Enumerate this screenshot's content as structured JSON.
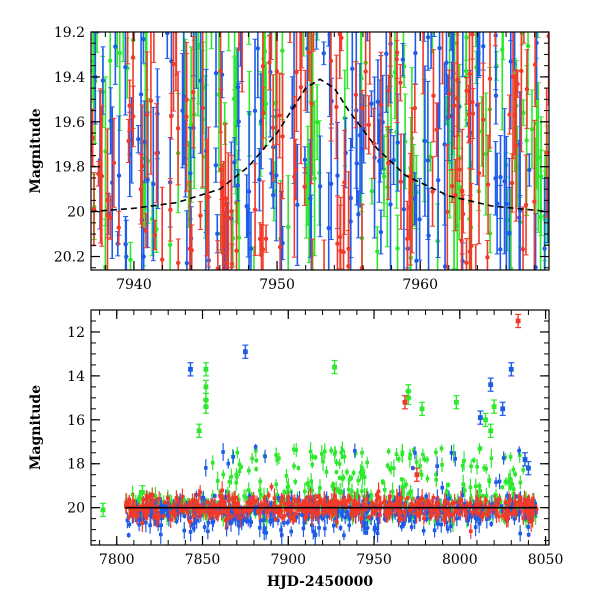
{
  "chart_data": [
    {
      "type": "scatter",
      "title": "",
      "xlabel": "",
      "ylabel": "Magnitude",
      "xlim": [
        7937,
        7969
      ],
      "ylim": [
        20.26,
        19.2
      ],
      "y_inverted": true,
      "x_ticks": [
        7940,
        7950,
        7960
      ],
      "x_tick_labels": [
        "7940",
        "7950",
        "7960"
      ],
      "y_ticks": [
        19.2,
        19.4,
        19.6,
        19.8,
        20,
        20.2
      ],
      "y_tick_labels": [
        "19.2",
        "19.4",
        "19.6",
        "19.8",
        "20",
        "20.2"
      ],
      "grid": false,
      "legend": "none",
      "series": [
        {
          "color": "#2ee82e",
          "x_range": [
            7937,
            7969
          ],
          "y_range": [
            19.0,
            20.3
          ],
          "error_bars": true
        },
        {
          "color": "#1e5be8",
          "x_range": [
            7937,
            7969
          ],
          "y_range": [
            19.0,
            20.3
          ],
          "error_bars": true
        },
        {
          "color": "#f23a2a",
          "x_range": [
            7937,
            7969
          ],
          "y_range": [
            19.0,
            20.3
          ],
          "error_bars": true
        }
      ],
      "model_curve": {
        "style": "dashed",
        "color": "#000000",
        "x": [
          7937,
          7940,
          7943,
          7946,
          7948,
          7950,
          7951,
          7952,
          7953,
          7954,
          7955,
          7957,
          7959,
          7962,
          7965,
          7969
        ],
        "y": [
          20.0,
          19.985,
          19.96,
          19.9,
          19.8,
          19.65,
          19.55,
          19.45,
          19.41,
          19.45,
          19.55,
          19.72,
          19.84,
          19.93,
          19.975,
          20.0
        ]
      }
    },
    {
      "type": "scatter",
      "title": "",
      "xlabel": "HJD-2450000",
      "ylabel": "Magnitude",
      "xlim": [
        7785,
        8052
      ],
      "ylim": [
        21.7,
        11.0
      ],
      "y_inverted": true,
      "x_ticks": [
        7800,
        7850,
        7900,
        7950,
        8000,
        8050
      ],
      "x_tick_labels": [
        "7800",
        "7850",
        "7900",
        "7950",
        "8000",
        "8050"
      ],
      "y_ticks": [
        12,
        14,
        16,
        18,
        20
      ],
      "y_tick_labels": [
        "12",
        "14",
        "16",
        "18",
        "20"
      ],
      "grid": false,
      "legend": "none",
      "series": [
        {
          "color": "#2ee82e",
          "baseline_mag": 20.0,
          "x_range": [
            7805,
            8045
          ],
          "error_bars": true,
          "outliers": [
            [
              7792,
              20.1
            ],
            [
              7815,
              19.3
            ],
            [
              7848,
              16.5
            ],
            [
              7852,
              13.7
            ],
            [
              7852,
              14.5
            ],
            [
              7852,
              15.1
            ],
            [
              7852,
              15.4
            ],
            [
              7927,
              13.6
            ],
            [
              7970,
              14.7
            ],
            [
              7970,
              15.0
            ],
            [
              7978,
              15.5
            ],
            [
              7998,
              15.2
            ],
            [
              8015,
              16.0
            ],
            [
              8018,
              16.5
            ],
            [
              8020,
              15.4
            ]
          ]
        },
        {
          "color": "#1e5be8",
          "baseline_mag": 20.15,
          "x_range": [
            7805,
            8045
          ],
          "error_bars": true,
          "outliers": [
            [
              7843,
              13.7
            ],
            [
              7875,
              12.9
            ],
            [
              8012,
              15.9
            ],
            [
              8018,
              14.4
            ],
            [
              8025,
              15.5
            ],
            [
              8030,
              13.7
            ],
            [
              8038,
              17.8
            ],
            [
              8040,
              18.2
            ]
          ]
        },
        {
          "color": "#f23a2a",
          "baseline_mag": 20.0,
          "x_range": [
            7805,
            8045
          ],
          "error_bars": true,
          "outliers": [
            [
              7968,
              15.2
            ],
            [
              7975,
              18.5
            ],
            [
              8034,
              11.5
            ]
          ]
        }
      ],
      "model_curve": {
        "style": "solid",
        "color": "#000000",
        "x": [
          7805,
          8045
        ],
        "y": [
          20.0,
          20.0
        ]
      }
    }
  ]
}
